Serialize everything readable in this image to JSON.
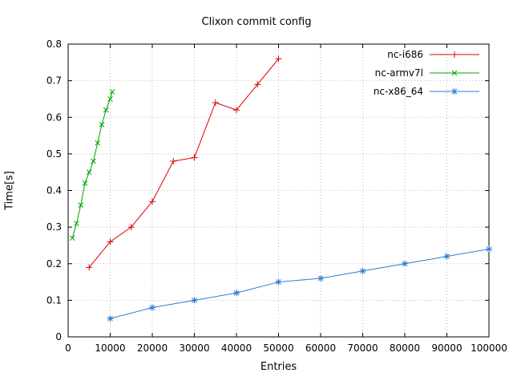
{
  "chart_data": {
    "type": "line",
    "title": "Clixon commit config",
    "xlabel": "Entries",
    "ylabel": "Time[s]",
    "xlim": [
      0,
      100000
    ],
    "ylim": [
      0,
      0.8
    ],
    "grid": true,
    "legend_position": "top-right",
    "xticks": {
      "values": [
        0,
        10000,
        20000,
        30000,
        40000,
        50000,
        60000,
        70000,
        80000,
        90000,
        100000
      ],
      "labels": [
        "0",
        "10000",
        "20000",
        "30000",
        "40000",
        "50000",
        "60000",
        "70000",
        "80000",
        "90000",
        "100000"
      ]
    },
    "yticks": {
      "values": [
        0,
        0.1,
        0.2,
        0.3,
        0.4,
        0.5,
        0.6,
        0.7,
        0.8
      ],
      "labels": [
        "0",
        "0.1",
        "0.2",
        "0.3",
        "0.4",
        "0.5",
        "0.6",
        "0.7",
        "0.8"
      ]
    },
    "colors": {
      "grid": "#b8b8b8",
      "border": "#000000",
      "text": "#000000"
    },
    "series": [
      {
        "name": "nc-i686",
        "color": "#dd0000",
        "marker": "plus",
        "points": [
          [
            5000,
            0.19
          ],
          [
            10000,
            0.26
          ],
          [
            15000,
            0.3
          ],
          [
            20000,
            0.37
          ],
          [
            25000,
            0.48
          ],
          [
            30000,
            0.49
          ],
          [
            35000,
            0.64
          ],
          [
            40000,
            0.62
          ],
          [
            45000,
            0.69
          ],
          [
            50000,
            0.76
          ]
        ]
      },
      {
        "name": "nc-armv7l",
        "color": "#00a000",
        "marker": "cross",
        "points": [
          [
            1000,
            0.27
          ],
          [
            2000,
            0.31
          ],
          [
            3000,
            0.36
          ],
          [
            4000,
            0.42
          ],
          [
            5000,
            0.45
          ],
          [
            6000,
            0.48
          ],
          [
            7000,
            0.53
          ],
          [
            8000,
            0.58
          ],
          [
            9000,
            0.62
          ],
          [
            10000,
            0.65
          ],
          [
            10500,
            0.67
          ]
        ]
      },
      {
        "name": "nc-x86_64",
        "color": "#2b7bd4",
        "marker": "asterisk",
        "points": [
          [
            10000,
            0.05
          ],
          [
            20000,
            0.08
          ],
          [
            30000,
            0.1
          ],
          [
            40000,
            0.12
          ],
          [
            50000,
            0.15
          ],
          [
            60000,
            0.16
          ],
          [
            70000,
            0.18
          ],
          [
            80000,
            0.2
          ],
          [
            90000,
            0.22
          ],
          [
            100000,
            0.24
          ]
        ]
      }
    ]
  }
}
